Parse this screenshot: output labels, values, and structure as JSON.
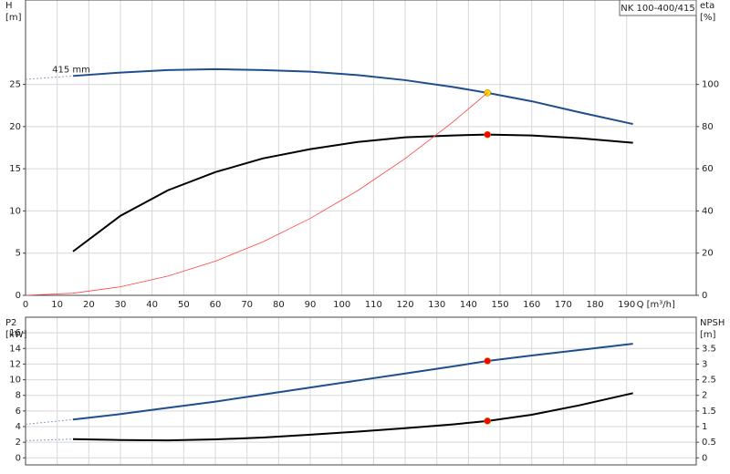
{
  "title": "NK 100-400/415",
  "chart_data": [
    {
      "type": "line",
      "annotation": "415 mm",
      "xlabel": "Q [m³/h]",
      "ylabel": [
        "H",
        "[m]"
      ],
      "y2label": [
        "eta",
        "[%]"
      ],
      "x": [
        0,
        15,
        30,
        45,
        60,
        75,
        90,
        105,
        120,
        135,
        146,
        160,
        175,
        192
      ],
      "xlim": [
        0,
        212
      ],
      "xticks": [
        0,
        10,
        20,
        30,
        40,
        50,
        60,
        70,
        80,
        90,
        100,
        110,
        120,
        130,
        140,
        150,
        160,
        170,
        180,
        190
      ],
      "ylim": [
        0,
        35
      ],
      "yticks": [
        0,
        5,
        10,
        15,
        20,
        25
      ],
      "y2lim": [
        0,
        140
      ],
      "y2ticks": [
        0,
        20,
        40,
        60,
        80,
        100
      ],
      "grid": true,
      "series": [
        {
          "color": "#1f4e8c",
          "width": 2,
          "dash_to": 15,
          "marker_at_x": 146,
          "marker_color": "#ffdd00",
          "values": [
            25.6,
            26.0,
            26.4,
            26.7,
            26.8,
            26.7,
            26.5,
            26.1,
            25.5,
            24.7,
            24.0,
            23.0,
            21.7,
            20.3
          ]
        },
        {
          "color": "#000000",
          "width": 2,
          "axis": "y2",
          "marker_at_x": 146,
          "marker_color": "#ff0000",
          "values": [
            null,
            20.8,
            37.7,
            49.8,
            58.4,
            64.9,
            69.3,
            72.7,
            74.9,
            75.8,
            76.2,
            75.8,
            74.5,
            72.3
          ]
        },
        {
          "color": "#ff4444",
          "width": 0.8,
          "values": [
            0,
            0.25,
            1.01,
            2.28,
            4.05,
            6.33,
            9.12,
            12.41,
            16.21,
            20.52,
            24.0,
            null,
            null,
            null
          ]
        }
      ]
    },
    {
      "type": "line",
      "ylabel": [
        "P2",
        "[kW]"
      ],
      "y2label": [
        "NPSH",
        "[m]"
      ],
      "x": [
        0,
        15,
        30,
        45,
        60,
        75,
        90,
        105,
        120,
        135,
        146,
        160,
        175,
        192
      ],
      "xlim": [
        0,
        212
      ],
      "xticks": [
        0,
        10,
        20,
        30,
        40,
        50,
        60,
        70,
        80,
        90,
        100,
        110,
        120,
        130,
        140,
        150,
        160,
        170,
        180,
        190
      ],
      "ylim": [
        -0.9,
        18
      ],
      "yticks": [
        0,
        2,
        4,
        6,
        8,
        10,
        12,
        14,
        16
      ],
      "y2lim": [
        -0.225,
        4.5
      ],
      "y2ticks": [
        0,
        0.5,
        1.0,
        1.5,
        2.0,
        2.5,
        3.0,
        3.5
      ],
      "grid": true,
      "series": [
        {
          "color": "#1f4e8c",
          "width": 2,
          "dash_to": 15,
          "marker_at_x": 146,
          "marker_color": "#ff0000",
          "values": [
            4.3,
            4.9,
            5.6,
            6.4,
            7.2,
            8.1,
            9.0,
            9.9,
            10.8,
            11.7,
            12.4,
            13.1,
            13.8,
            14.6
          ]
        },
        {
          "color": "#000000",
          "width": 2,
          "axis": "y2",
          "dash_to": 15,
          "marker_at_x": 146,
          "marker_color": "#ff0000",
          "values": [
            0.55,
            0.6,
            0.57,
            0.56,
            0.59,
            0.65,
            0.74,
            0.84,
            0.95,
            1.07,
            1.18,
            1.38,
            1.68,
            2.07
          ]
        }
      ]
    }
  ]
}
